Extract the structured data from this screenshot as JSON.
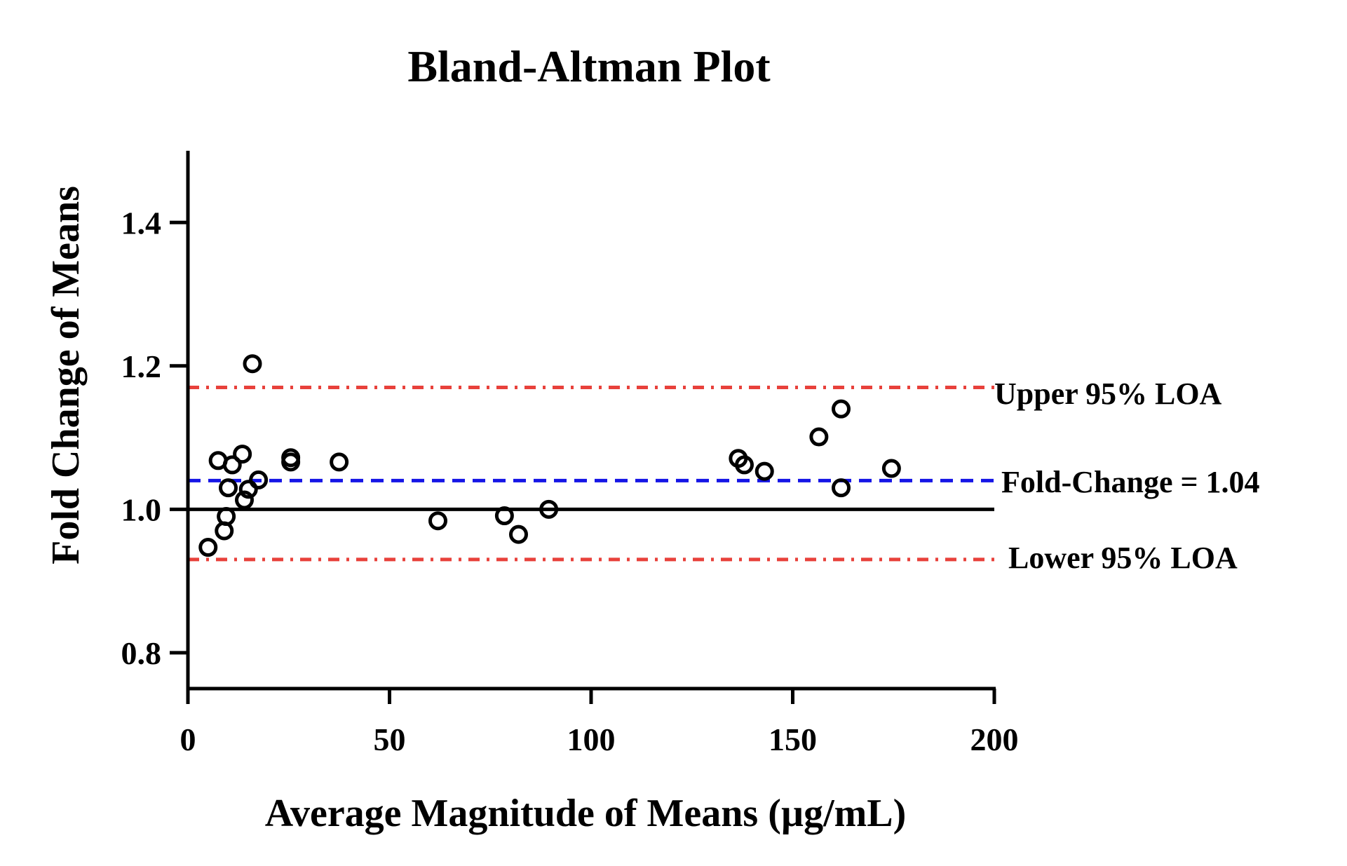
{
  "chart_data": {
    "type": "scatter",
    "title": "Bland-Altman Plot",
    "xlabel": "Average Magnitude of Means (µg/mL)",
    "ylabel": "Fold Change of Means",
    "xlim": [
      0,
      200
    ],
    "ylim": [
      0.75,
      1.5
    ],
    "x_ticks": [
      0,
      50,
      100,
      150,
      200
    ],
    "y_ticks": [
      0.8,
      1.0,
      1.2,
      1.4
    ],
    "x_tick_labels": [
      "0",
      "50",
      "100",
      "150",
      "200"
    ],
    "y_tick_labels": [
      "0.8",
      "1.0",
      "1.2",
      "1.4"
    ],
    "grid": false,
    "marker": "open-circle",
    "points": [
      {
        "x": 5.0,
        "y": 0.947
      },
      {
        "x": 7.5,
        "y": 1.068
      },
      {
        "x": 9.0,
        "y": 0.97
      },
      {
        "x": 9.5,
        "y": 0.99
      },
      {
        "x": 10.0,
        "y": 1.03
      },
      {
        "x": 11.0,
        "y": 1.062
      },
      {
        "x": 13.5,
        "y": 1.077
      },
      {
        "x": 14.0,
        "y": 1.013
      },
      {
        "x": 15.0,
        "y": 1.028
      },
      {
        "x": 16.0,
        "y": 1.203
      },
      {
        "x": 17.5,
        "y": 1.041
      },
      {
        "x": 25.5,
        "y": 1.072
      },
      {
        "x": 25.5,
        "y": 1.066
      },
      {
        "x": 37.5,
        "y": 1.066
      },
      {
        "x": 62.0,
        "y": 0.984
      },
      {
        "x": 78.5,
        "y": 0.991
      },
      {
        "x": 82.0,
        "y": 0.965
      },
      {
        "x": 89.5,
        "y": 1.0
      },
      {
        "x": 136.5,
        "y": 1.071
      },
      {
        "x": 138.0,
        "y": 1.062
      },
      {
        "x": 143.0,
        "y": 1.053
      },
      {
        "x": 156.5,
        "y": 1.101
      },
      {
        "x": 162.0,
        "y": 1.14
      },
      {
        "x": 162.0,
        "y": 1.03
      },
      {
        "x": 174.5,
        "y": 1.057
      }
    ],
    "reference_lines": [
      {
        "label": "Upper 95% LOA",
        "y": 1.17,
        "color": "#e8413b",
        "style": "dash-dot"
      },
      {
        "label": "Fold-Change = 1.04",
        "y": 1.04,
        "color": "#1515e6",
        "style": "dashed"
      },
      {
        "label": "Lower 95% LOA",
        "y": 0.93,
        "color": "#e8413b",
        "style": "dash-dot"
      },
      {
        "label": "",
        "y": 1.0,
        "color": "#000000",
        "style": "solid"
      }
    ]
  }
}
